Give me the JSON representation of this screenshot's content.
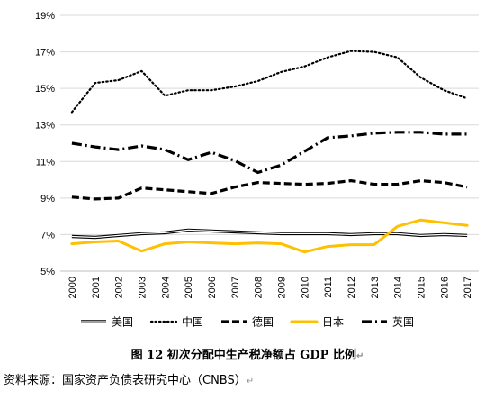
{
  "caption": "图 12   初次分配中生产税净额占 GDP 比例",
  "source_note": "资料来源：国家资产负债表研究中心（CNBS）",
  "paragraph_mark": "↵",
  "chart_data": {
    "type": "line",
    "x": [
      "2000",
      "2001",
      "2002",
      "2003",
      "2004",
      "2005",
      "2006",
      "2007",
      "2008",
      "2009",
      "2010",
      "2011",
      "2012",
      "2013",
      "2014",
      "2015",
      "2016",
      "2017"
    ],
    "ylim": [
      5,
      19
    ],
    "yticks": [
      "5%",
      "7%",
      "9%",
      "11%",
      "13%",
      "15%",
      "17%",
      "19%"
    ],
    "ytick_values": [
      5,
      7,
      9,
      11,
      13,
      15,
      17,
      19
    ],
    "grid": true,
    "legend_position": "bottom",
    "series": [
      {
        "name": "美国",
        "style": "double",
        "color": "#000000",
        "values": [
          6.9,
          6.85,
          6.95,
          7.05,
          7.1,
          7.25,
          7.2,
          7.15,
          7.1,
          7.05,
          7.05,
          7.05,
          7.0,
          7.05,
          7.05,
          6.95,
          7.0,
          6.95
        ]
      },
      {
        "name": "中国",
        "style": "dotted",
        "color": "#000000",
        "values": [
          13.7,
          15.3,
          15.45,
          15.95,
          14.6,
          14.9,
          14.9,
          15.1,
          15.4,
          15.9,
          16.2,
          16.7,
          17.05,
          17.0,
          16.7,
          15.6,
          14.9,
          14.45
        ]
      },
      {
        "name": "德国",
        "style": "dashed",
        "color": "#000000",
        "values": [
          9.05,
          8.95,
          9.0,
          9.55,
          9.45,
          9.35,
          9.25,
          9.6,
          9.85,
          9.8,
          9.75,
          9.8,
          9.95,
          9.75,
          9.75,
          9.95,
          9.85,
          9.6
        ]
      },
      {
        "name": "日本",
        "style": "solid",
        "color": "#FFC000",
        "values": [
          6.5,
          6.6,
          6.65,
          6.1,
          6.5,
          6.6,
          6.55,
          6.5,
          6.55,
          6.5,
          6.05,
          6.35,
          6.45,
          6.45,
          7.45,
          7.8,
          7.65,
          7.5
        ]
      },
      {
        "name": "英国",
        "style": "dashdot",
        "color": "#000000",
        "values": [
          12.0,
          11.8,
          11.65,
          11.85,
          11.65,
          11.1,
          11.5,
          11.05,
          10.4,
          10.8,
          11.55,
          12.3,
          12.4,
          12.55,
          12.6,
          12.6,
          12.5,
          12.5
        ]
      }
    ]
  }
}
